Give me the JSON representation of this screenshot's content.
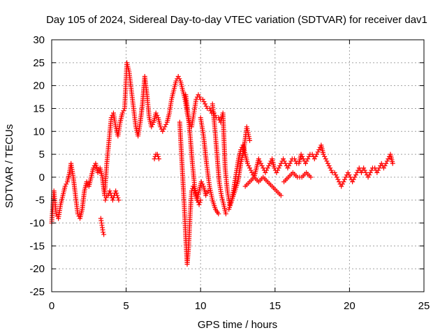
{
  "chart_data": {
    "type": "scatter",
    "title": "Day 105 of 2024, Sidereal Day-to-day VTEC variation (SDTVAR) for receiver dav1",
    "xlabel": "GPS time / hours",
    "ylabel": "SDTVAR / TECUs",
    "xlim": [
      0,
      25
    ],
    "ylim": [
      -25,
      30
    ],
    "xticks": [
      0,
      5,
      10,
      15,
      20,
      25
    ],
    "yticks": [
      -25,
      -20,
      -15,
      -10,
      -5,
      0,
      5,
      10,
      15,
      20,
      25,
      30
    ],
    "grid": true,
    "marker": "+",
    "colors": {
      "series": "#ff0000",
      "axis": "#000000",
      "grid": "#a0a0a0"
    },
    "series": [
      {
        "name": "sdtvar",
        "x": [
          0.0,
          0.15,
          0.3,
          0.45,
          0.6,
          0.75,
          0.9,
          1.05,
          1.2,
          1.3,
          1.45,
          1.6,
          1.75,
          1.9,
          2.05,
          2.2,
          2.35,
          2.5,
          2.65,
          2.8,
          2.95,
          3.1,
          3.25,
          3.4,
          3.55,
          3.7,
          3.85,
          4.0,
          4.15,
          4.3,
          4.45,
          4.6,
          4.75,
          4.9,
          5.05,
          5.2,
          5.35,
          5.5,
          5.65,
          5.8,
          5.95,
          6.1,
          6.25,
          6.4,
          6.55,
          6.7,
          6.85,
          7.0,
          7.15,
          7.3,
          7.45,
          7.6,
          7.75,
          7.9,
          8.05,
          8.2,
          8.35,
          8.5,
          8.65,
          8.8,
          8.95,
          9.1,
          9.25,
          9.4,
          9.55,
          9.7,
          9.85,
          10.0,
          10.15,
          10.3,
          10.45,
          10.6,
          10.75,
          10.9,
          11.05,
          11.2,
          11.35,
          11.5,
          11.65,
          11.8,
          11.95,
          12.1,
          12.25,
          12.4,
          12.55,
          12.7,
          12.85,
          13.0,
          13.15,
          13.3,
          13.45,
          13.6,
          13.75,
          13.9,
          14.05,
          14.2,
          14.35,
          14.5,
          14.65,
          14.8,
          14.95,
          15.1,
          15.25,
          15.4,
          15.55,
          15.7,
          15.85,
          16.0,
          16.15,
          16.3,
          16.45,
          16.6,
          16.75,
          16.9,
          17.05,
          17.2,
          17.35,
          17.5,
          17.65,
          17.8,
          17.95,
          18.1,
          18.25,
          18.4,
          18.55,
          18.7,
          18.85,
          19.0,
          19.15,
          19.3,
          19.45,
          19.6,
          19.75,
          19.9,
          20.05,
          20.2,
          20.35,
          20.5,
          20.65,
          20.8,
          20.95,
          21.1,
          21.25,
          21.4,
          21.55,
          21.7,
          21.85,
          22.0,
          22.15,
          22.3,
          22.45,
          22.6,
          22.75,
          22.9
        ],
        "y": [
          -10.0,
          -3.0,
          -8.0,
          -9.0,
          -6.0,
          -4.0,
          -2.0,
          -1.0,
          1.0,
          3.0,
          0.0,
          -4.0,
          -8.0,
          -9.0,
          -7.0,
          -3.0,
          -1.0,
          -2.0,
          0.0,
          2.0,
          3.0,
          1.0,
          2.0,
          0.0,
          -4.0,
          3.0,
          8.0,
          13.0,
          14.0,
          11.0,
          9.0,
          12.0,
          14.0,
          15.0,
          25.0,
          23.0,
          19.0,
          15.0,
          11.0,
          9.0,
          12.0,
          16.0,
          22.0,
          18.0,
          13.0,
          11.0,
          12.0,
          14.0,
          13.0,
          11.0,
          10.0,
          11.0,
          12.0,
          14.0,
          17.0,
          19.0,
          21.0,
          22.0,
          21.0,
          19.0,
          17.0,
          14.0,
          12.0,
          11.0,
          14.0,
          17.0,
          18.0,
          17.0,
          17.0,
          16.0,
          15.0,
          15.0,
          14.0,
          14.0,
          13.0,
          13.0,
          12.0,
          14.0,
          2.0,
          -3.0,
          -6.0,
          -5.0,
          -2.0,
          1.0,
          4.0,
          6.0,
          7.0,
          5.0,
          3.0,
          2.0,
          1.0,
          0.0,
          2.0,
          4.0,
          3.0,
          2.0,
          1.0,
          2.0,
          3.0,
          4.0,
          2.0,
          1.0,
          2.0,
          3.0,
          4.0,
          3.0,
          2.0,
          3.0,
          4.0,
          4.0,
          3.0,
          3.0,
          5.0,
          4.0,
          3.0,
          4.0,
          5.0,
          5.0,
          4.0,
          5.0,
          6.0,
          7.0,
          5.0,
          4.0,
          3.0,
          2.0,
          1.0,
          1.0,
          0.0,
          -1.0,
          -2.0,
          -1.0,
          0.0,
          1.0,
          0.0,
          -1.0,
          0.0,
          1.0,
          2.0,
          1.0,
          2.0,
          1.0,
          0.0,
          1.0,
          2.0,
          2.0,
          1.0,
          2.0,
          3.0,
          2.0,
          3.0,
          4.0,
          5.0,
          3.0
        ]
      },
      {
        "name": "sdtvar",
        "x": [
          3.6,
          3.7,
          3.8,
          3.9,
          4.0,
          4.1,
          4.2,
          4.3,
          4.4,
          4.5
        ],
        "y": [
          -5.0,
          -4.0,
          -4.0,
          -3.0,
          -4.0,
          -5.0,
          -4.0,
          -3.0,
          -4.0,
          -5.0
        ]
      },
      {
        "name": "sdtvar",
        "x": [
          3.3,
          3.35,
          3.4,
          3.45,
          3.5
        ],
        "y": [
          -9.0,
          -10.0,
          -11.0,
          -12.0,
          -12.5
        ]
      },
      {
        "name": "sdtvar",
        "x": [
          6.9,
          7.0,
          7.1,
          7.2
        ],
        "y": [
          4.0,
          5.0,
          5.0,
          4.0
        ]
      },
      {
        "name": "sdtvar",
        "x": [
          8.6,
          8.7,
          8.8,
          8.9,
          9.0,
          9.1,
          9.2,
          9.3,
          9.4,
          9.5,
          9.6,
          9.7,
          9.8,
          9.9,
          10.0
        ],
        "y": [
          12.0,
          6.0,
          0.0,
          -6.0,
          -13.0,
          -19.0,
          -15.0,
          -8.0,
          -3.0,
          -2.0,
          -3.0,
          -4.0,
          -5.0,
          -6.0,
          -5.0
        ]
      },
      {
        "name": "sdtvar",
        "x": [
          9.0,
          9.15,
          9.3,
          9.45,
          9.6,
          9.75,
          9.9,
          10.05,
          10.2,
          10.35,
          10.5
        ],
        "y": [
          18.0,
          14.0,
          9.0,
          3.0,
          -2.0,
          -5.0,
          -3.0,
          -1.0,
          -2.0,
          -4.0,
          -3.0
        ]
      },
      {
        "name": "sdtvar",
        "x": [
          10.0,
          10.2,
          10.4,
          10.6,
          10.8,
          11.0,
          11.2
        ],
        "y": [
          13.0,
          9.0,
          3.0,
          -2.0,
          -5.0,
          -7.0,
          -8.0
        ]
      },
      {
        "name": "sdtvar",
        "x": [
          10.8,
          10.95,
          11.1,
          11.25,
          11.4,
          11.55,
          11.7
        ],
        "y": [
          16.0,
          11.0,
          5.0,
          -1.0,
          -4.0,
          -6.0,
          -8.0
        ]
      },
      {
        "name": "sdtvar",
        "x": [
          11.9,
          12.1,
          12.3,
          12.5,
          12.7,
          12.9,
          13.1,
          13.3
        ],
        "y": [
          -7.0,
          -5.0,
          -3.0,
          -1.0,
          3.0,
          6.0,
          11.0,
          8.0
        ]
      },
      {
        "name": "sdtvar",
        "x": [
          13.0,
          13.3,
          13.6,
          13.9,
          14.2,
          14.5,
          14.8,
          15.1,
          15.4
        ],
        "y": [
          -2.0,
          -1.0,
          0.0,
          -1.0,
          0.0,
          -1.0,
          -2.0,
          -3.0,
          -4.0
        ]
      },
      {
        "name": "sdtvar",
        "x": [
          15.6,
          15.9,
          16.2,
          16.5,
          16.8,
          17.1,
          17.4
        ],
        "y": [
          -1.0,
          0.0,
          1.0,
          0.0,
          0.0,
          1.0,
          0.0
        ]
      }
    ]
  }
}
